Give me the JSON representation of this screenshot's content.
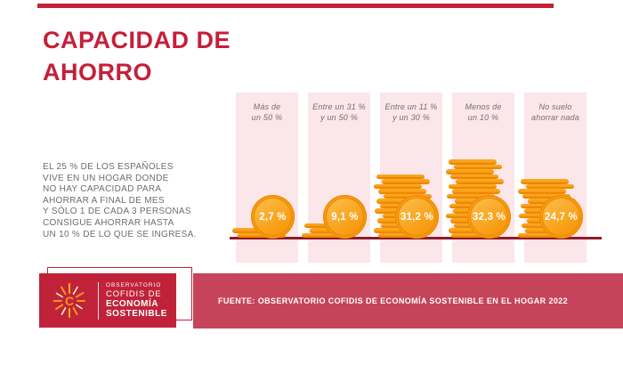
{
  "header": {
    "title_line1": "CAPACIDAD DE",
    "title_line2": "AHORRO"
  },
  "intro": {
    "text": "EL 25 % DE LOS ESPAÑOLES\nVIVE EN UN HOGAR DONDE\nNO HAY CAPACIDAD PARA\nAHORRAR A FINAL DE MES\nY SÓLO 1 DE CADA 3 PERSONAS\nCONSIGUE AHORRAR HASTA\nUN 10 % DE LO QUE SE INGRESA."
  },
  "columns": [
    {
      "label": "Más de\nun 50 %",
      "value_label": "2,7 %",
      "value": 2.7,
      "coins": 2
    },
    {
      "label": "Entre un 31 %\ny un 50 %",
      "value_label": "9,1 %",
      "value": 9.1,
      "coins": 3
    },
    {
      "label": "Entre un 11 %\ny un 30 %",
      "value_label": "31,2 %",
      "value": 31.2,
      "coins": 13
    },
    {
      "label": "Menos de\nun 10 %",
      "value_label": "32,3 %",
      "value": 32.3,
      "coins": 16
    },
    {
      "label": "No suelo\nahorrar nada",
      "value_label": "24,7 %",
      "value": 24.7,
      "coins": 12
    }
  ],
  "logo": {
    "line1": "OBSERVATORIO",
    "line2": "COFIDIS DE",
    "line3": "ECONOMÍA",
    "line4": "SOSTENIBLE",
    "icon": "sunburst-c-icon"
  },
  "footer": {
    "source": "FUENTE: OBSERVATORIO COFIDIS DE ECONOMÍA SOSTENIBLE EN EL HOGAR 2022"
  },
  "colors": {
    "brand_red": "#C51F3A",
    "band_red": "#C64459",
    "logo_box_red": "#C02339",
    "baseline_maroon": "#8E1A2B",
    "column_pink": "#FBE6EA",
    "text_gray": "#6D6E71",
    "coin_orange": "#F9A21B",
    "coin_orange_dark": "#EE8604",
    "coin_orange_light": "#FCBE4B"
  },
  "chart_data": {
    "type": "bar",
    "title": "CAPACIDAD DE AHORRO",
    "representation": "coin-stack pictogram with value badges",
    "categories": [
      "Más de un 50 %",
      "Entre un 31 % y un 50 %",
      "Entre un 11 % y un 30 %",
      "Menos de un 10 %",
      "No suelo ahorrar nada"
    ],
    "values": [
      2.7,
      9.1,
      31.2,
      32.3,
      24.7
    ],
    "value_labels": [
      "2,7 %",
      "9,1 %",
      "31,2 %",
      "32,3 %",
      "24,7 %"
    ],
    "coin_counts": [
      2,
      3,
      13,
      16,
      12
    ],
    "unit": "%",
    "xlabel": "",
    "ylabel": "",
    "legend": false,
    "grid": false,
    "annotation": "EL 25 % DE LOS ESPAÑOLES VIVE EN UN HOGAR DONDE NO HAY CAPACIDAD PARA AHORRAR A FINAL DE MES Y SÓLO 1 DE CADA 3 PERSONAS CONSIGUE AHORRAR HASTA UN 10 % DE LO QUE SE INGRESA.",
    "source": "FUENTE: OBSERVATORIO COFIDIS DE ECONOMÍA SOSTENIBLE EN EL HOGAR 2022"
  }
}
